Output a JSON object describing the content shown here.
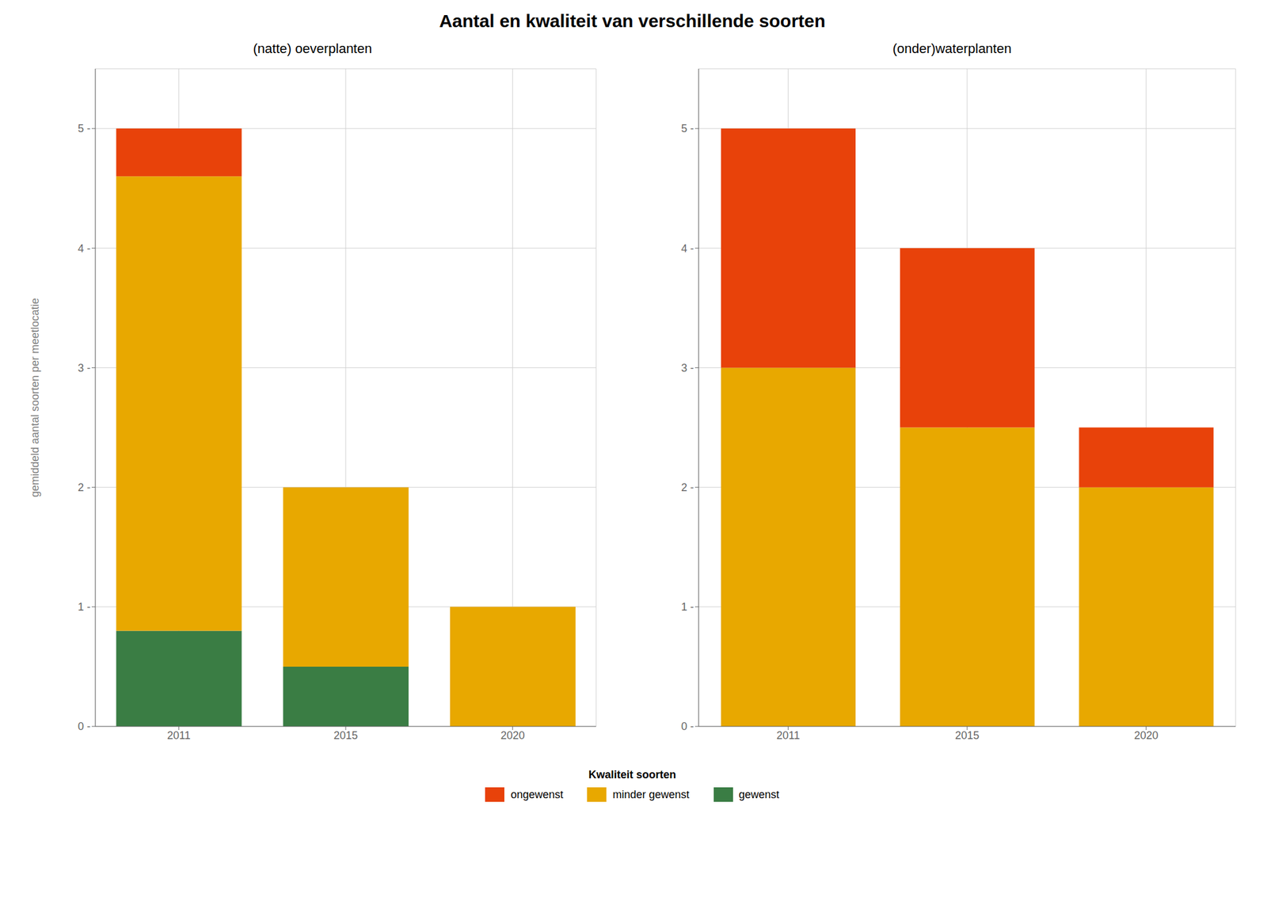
{
  "chart_data": [
    {
      "type": "bar",
      "title": "Aantal en kwaliteit van verschillende soorten",
      "subtitle": "(natte) oeverplanten",
      "ylabel": "gemiddeld aantal soorten per meetlocatie",
      "categories": [
        "2011",
        "2015",
        "2020"
      ],
      "series": [
        {
          "name": "gewenst",
          "color": "#3A7D44",
          "values": [
            0.8,
            0.5,
            0.0
          ]
        },
        {
          "name": "minder gewenst",
          "color": "#E8A800",
          "values": [
            3.8,
            1.5,
            1.0
          ]
        },
        {
          "name": "ongewenst",
          "color": "#E8420A",
          "values": [
            0.4,
            0.0,
            0.0
          ]
        }
      ],
      "ylim": [
        0,
        5.5
      ],
      "yticks": [
        {
          "value": 0,
          "label": "0 -"
        },
        {
          "value": 1,
          "label": "1 -"
        },
        {
          "value": 2,
          "label": "2 -"
        },
        {
          "value": 3,
          "label": "3 -"
        },
        {
          "value": 4,
          "label": "4 -"
        },
        {
          "value": 5,
          "label": "5 -"
        }
      ],
      "grid": true,
      "stacked": true,
      "legend": "bottom",
      "legend_title": "Kwaliteit soorten"
    },
    {
      "type": "bar",
      "subtitle": "(onder)waterplanten",
      "categories": [
        "2011",
        "2015",
        "2020"
      ],
      "series": [
        {
          "name": "gewenst",
          "color": "#3A7D44",
          "values": [
            0.0,
            0.0,
            0.0
          ]
        },
        {
          "name": "minder gewenst",
          "color": "#E8A800",
          "values": [
            3.0,
            2.5,
            2.0
          ]
        },
        {
          "name": "ongewenst",
          "color": "#E8420A",
          "values": [
            2.0,
            1.5,
            0.5
          ]
        }
      ],
      "ylim": [
        0,
        5.5
      ],
      "yticks": [
        {
          "value": 0,
          "label": "0 -"
        },
        {
          "value": 1,
          "label": "1 -"
        },
        {
          "value": 2,
          "label": "2 -"
        },
        {
          "value": 3,
          "label": "3 -"
        },
        {
          "value": 4,
          "label": "4 -"
        },
        {
          "value": 5,
          "label": "5 -"
        }
      ],
      "grid": true,
      "stacked": true
    }
  ]
}
